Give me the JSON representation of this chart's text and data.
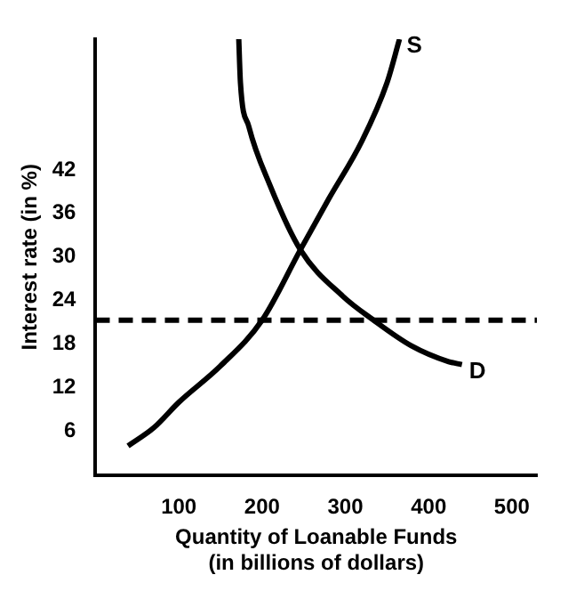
{
  "chart_data": {
    "type": "line",
    "xlabel": "Quantity of Loanable Funds\n(in billions of dollars)",
    "ylabel": "Interest rate (in %)",
    "series": [
      {
        "color": "#000000",
        "x": [
          39,
          70,
          100,
          150,
          200,
          246,
          280,
          320,
          350,
          365
        ],
        "values": [
          4,
          6.5,
          10,
          15,
          21.3,
          31,
          38,
          46,
          54,
          60
        ]
      },
      {
        "color": "#000000",
        "x": [
          172,
          174,
          184,
          209,
          246,
          297,
          334,
          379,
          424,
          440
        ],
        "values": [
          60,
          54,
          48,
          40,
          31,
          24.6,
          21.3,
          17.8,
          15.6,
          15.2
        ]
      }
    ],
    "xlim": [
      0,
      530
    ],
    "ylim": [
      0,
      60
    ],
    "xticks": [
      100,
      200,
      300,
      400,
      500
    ],
    "yticks": [
      6,
      12,
      18,
      24,
      30,
      36,
      42
    ],
    "ref_lines": [
      {
        "axis": "y",
        "value": 21.3,
        "color": "#000000",
        "line_style": "dashed"
      }
    ],
    "annotations": [
      {
        "text": "S",
        "x": 365,
        "y": 60
      },
      {
        "text": "D",
        "x": 440,
        "y": 15.2
      }
    ],
    "grid": false,
    "legend": false,
    "marker": "none",
    "line_style": "solid"
  }
}
